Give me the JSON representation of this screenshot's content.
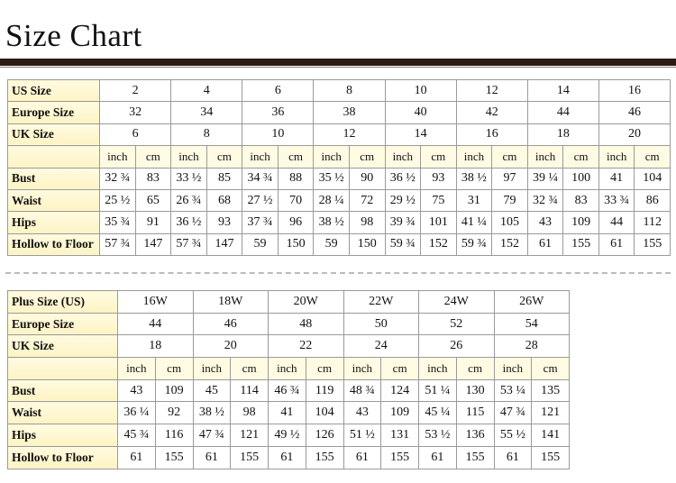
{
  "header": {
    "title": "Size Chart"
  },
  "tables": [
    {
      "size_rows": [
        {
          "label": "US Size",
          "values": [
            "2",
            "4",
            "6",
            "8",
            "10",
            "12",
            "14",
            "16"
          ]
        },
        {
          "label": "Europe Size",
          "values": [
            "32",
            "34",
            "36",
            "38",
            "40",
            "42",
            "44",
            "46"
          ]
        },
        {
          "label": "UK Size",
          "values": [
            "6",
            "8",
            "10",
            "12",
            "14",
            "16",
            "18",
            "20"
          ]
        }
      ],
      "units": [
        "inch",
        "cm"
      ],
      "measurements": [
        {
          "label": "Bust",
          "values": [
            "32 ¾",
            "83",
            "33 ½",
            "85",
            "34 ¾",
            "88",
            "35 ½",
            "90",
            "36 ½",
            "93",
            "38 ½",
            "97",
            "39 ¼",
            "100",
            "41",
            "104"
          ]
        },
        {
          "label": "Waist",
          "values": [
            "25 ½",
            "65",
            "26 ¾",
            "68",
            "27 ½",
            "70",
            "28 ¼",
            "72",
            "29 ½",
            "75",
            "31",
            "79",
            "32 ¾",
            "83",
            "33 ¾",
            "86"
          ]
        },
        {
          "label": "Hips",
          "values": [
            "35 ¾",
            "91",
            "36 ½",
            "93",
            "37 ¾",
            "96",
            "38 ½",
            "98",
            "39 ¾",
            "101",
            "41 ¼",
            "105",
            "43",
            "109",
            "44",
            "112"
          ]
        },
        {
          "label": "Hollow to Floor",
          "values": [
            "57 ¾",
            "147",
            "57 ¾",
            "147",
            "59",
            "150",
            "59",
            "150",
            "59 ¾",
            "152",
            "59 ¾",
            "152",
            "61",
            "155",
            "61",
            "155"
          ]
        }
      ]
    },
    {
      "size_rows": [
        {
          "label": "Plus Size (US)",
          "values": [
            "16W",
            "18W",
            "20W",
            "22W",
            "24W",
            "26W"
          ]
        },
        {
          "label": "Europe Size",
          "values": [
            "44",
            "46",
            "48",
            "50",
            "52",
            "54"
          ]
        },
        {
          "label": "UK Size",
          "values": [
            "18",
            "20",
            "22",
            "24",
            "26",
            "28"
          ]
        }
      ],
      "units": [
        "inch",
        "cm"
      ],
      "measurements": [
        {
          "label": "Bust",
          "values": [
            "43",
            "109",
            "45",
            "114",
            "46 ¾",
            "119",
            "48 ¾",
            "124",
            "51 ¼",
            "130",
            "53 ¼",
            "135"
          ]
        },
        {
          "label": "Waist",
          "values": [
            "36 ¼",
            "92",
            "38 ½",
            "98",
            "41",
            "104",
            "43",
            "109",
            "45 ¼",
            "115",
            "47 ¾",
            "121"
          ]
        },
        {
          "label": "Hips",
          "values": [
            "45 ¾",
            "116",
            "47 ¾",
            "121",
            "49 ½",
            "126",
            "51 ½",
            "131",
            "53 ½",
            "136",
            "55 ½",
            "141"
          ]
        },
        {
          "label": "Hollow to Floor",
          "values": [
            "61",
            "155",
            "61",
            "155",
            "61",
            "155",
            "61",
            "155",
            "61",
            "155",
            "61",
            "155"
          ]
        }
      ]
    }
  ]
}
